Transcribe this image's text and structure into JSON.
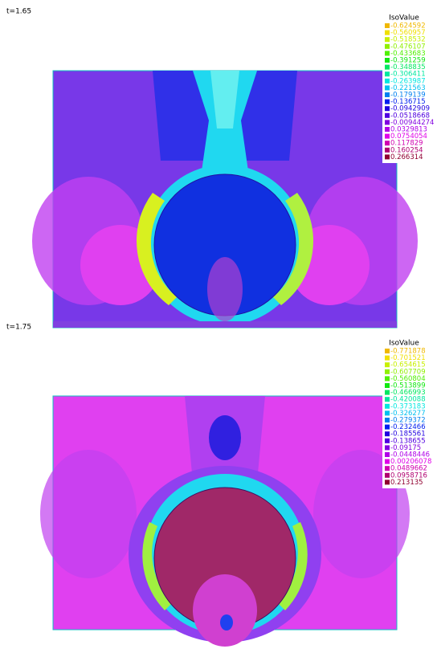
{
  "panels": [
    {
      "time_label": "t=1.65",
      "legend_title": "IsoValue",
      "levels": [
        -0.624592,
        -0.560957,
        -0.518532,
        -0.476107,
        -0.433683,
        -0.391259,
        -0.348835,
        -0.306411,
        -0.263987,
        -0.221563,
        -0.179139,
        -0.136715,
        -0.0942909,
        -0.0518668,
        -0.00944274,
        0.0329813,
        0.0754054,
        0.117829,
        0.160254,
        0.266314
      ]
    },
    {
      "time_label": "t=1.75",
      "legend_title": "IsoValue",
      "levels": [
        -0.771878,
        -0.701521,
        -0.654615,
        -0.607709,
        -0.560804,
        -0.513899,
        -0.466993,
        -0.420088,
        -0.373183,
        -0.326277,
        -0.279372,
        -0.232466,
        -0.185561,
        -0.138655,
        -0.09175,
        -0.0448446,
        0.00206078,
        0.0489662,
        0.0958716,
        0.213135
      ]
    }
  ],
  "level_colors": [
    "#f0b800",
    "#f0e000",
    "#c8f000",
    "#90f000",
    "#50f000",
    "#10e810",
    "#00e860",
    "#00e8a0",
    "#00e8e0",
    "#00c0f0",
    "#0080f0",
    "#0020f0",
    "#2000e0",
    "#5000e0",
    "#8000e0",
    "#b000e8",
    "#e000e8",
    "#d000b0",
    "#b00070",
    "#900030"
  ]
}
